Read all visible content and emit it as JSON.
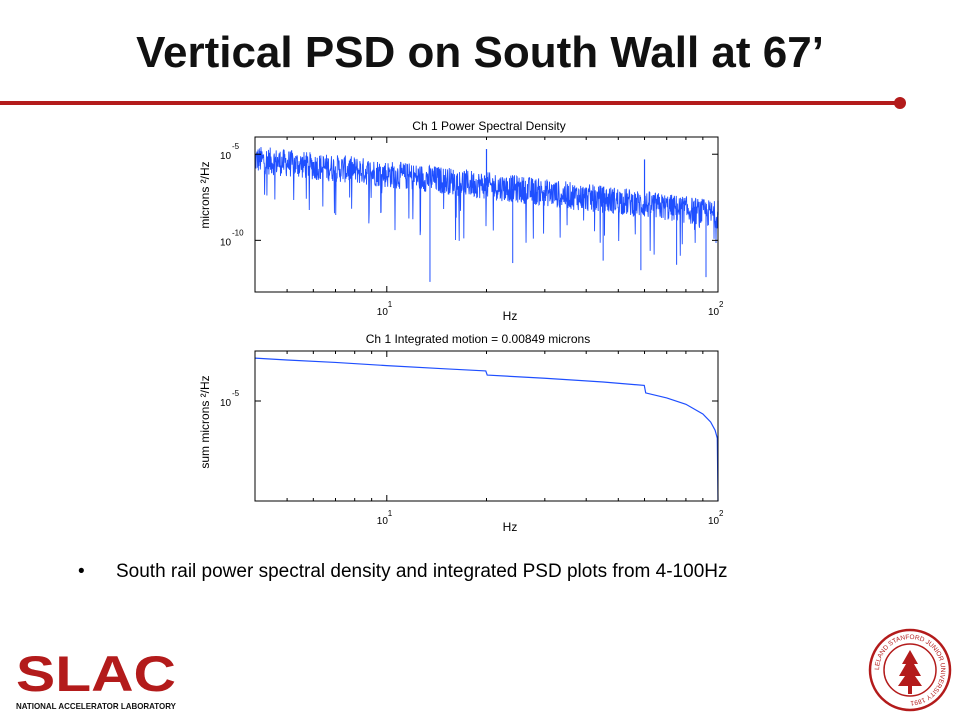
{
  "slide": {
    "title": "Vertical PSD on South Wall at 67’",
    "bullet": "South rail power spectral density and integrated PSD plots from 4-100Hz",
    "accent_color": "#b31b1b"
  },
  "logo": {
    "name": "SLAC",
    "subtitle": "NATIONAL ACCELERATOR LABORATORY",
    "color": "#b31b1b"
  },
  "seal": {
    "text": "LELAND STANFORD JUNIOR UNIVERSITY 1891",
    "color": "#b31b1b"
  },
  "chart_data": [
    {
      "type": "line",
      "title": "Ch 1  Power Spectral Density",
      "xlabel": "Hz",
      "ylabel": "microns ²/Hz",
      "xscale": "log",
      "yscale": "log",
      "xlim": [
        4,
        100
      ],
      "ylim": [
        1e-13,
        0.0001
      ],
      "x_ticks": [
        {
          "value": 10,
          "label": "10",
          "exp": "1"
        },
        {
          "value": 100,
          "label": "10",
          "exp": "2"
        }
      ],
      "y_ticks": [
        {
          "value": 1e-05,
          "label": "10",
          "exp": "-5"
        },
        {
          "value": 1e-10,
          "label": "10",
          "exp": "-10"
        }
      ],
      "grid": false,
      "series": [
        {
          "color": "#1f4fff",
          "x": [
            4,
            5,
            6,
            8,
            10,
            15,
            20,
            30,
            40,
            50,
            60,
            80,
            100
          ],
          "y": [
            5e-06,
            3e-06,
            2e-06,
            1.2e-06,
            7e-07,
            3e-07,
            1.5e-07,
            6e-08,
            3e-08,
            2e-08,
            1.2e-08,
            6e-09,
            3e-09
          ],
          "spikes": [
            {
              "x": 20,
              "y": 2e-05
            },
            {
              "x": 60,
              "y": 5e-06
            },
            {
              "x": 100,
              "y": 2e-08
            }
          ]
        }
      ]
    },
    {
      "type": "line",
      "title": "Ch 1  Integrated motion = 0.00849 microns",
      "xlabel": "Hz",
      "ylabel": "sum microns ²/Hz",
      "xscale": "log",
      "yscale": "log",
      "xlim": [
        4,
        100
      ],
      "ylim": [
        1e-07,
        0.0001
      ],
      "x_ticks": [
        {
          "value": 10,
          "label": "10",
          "exp": "1"
        },
        {
          "value": 100,
          "label": "10",
          "exp": "2"
        }
      ],
      "y_ticks": [
        {
          "value": 1e-05,
          "label": "10",
          "exp": "-5"
        }
      ],
      "grid": false,
      "series": [
        {
          "color": "#1f4fff",
          "x": [
            4,
            5,
            7,
            10,
            15,
            19.9,
            20.1,
            30,
            45,
            59.9,
            60.5,
            70,
            80,
            90,
            95,
            98,
            99.5,
            100
          ],
          "y": [
            7.2e-05,
            6.6e-05,
            5.9e-05,
            5.1e-05,
            4.4e-05,
            4e-05,
            3.3e-05,
            2.85e-05,
            2.4e-05,
            2.05e-05,
            1.45e-05,
            1.15e-05,
            8.6e-06,
            5.5e-06,
            3.8e-06,
            2.6e-06,
            1.8e-06,
            1e-07
          ]
        }
      ]
    }
  ]
}
